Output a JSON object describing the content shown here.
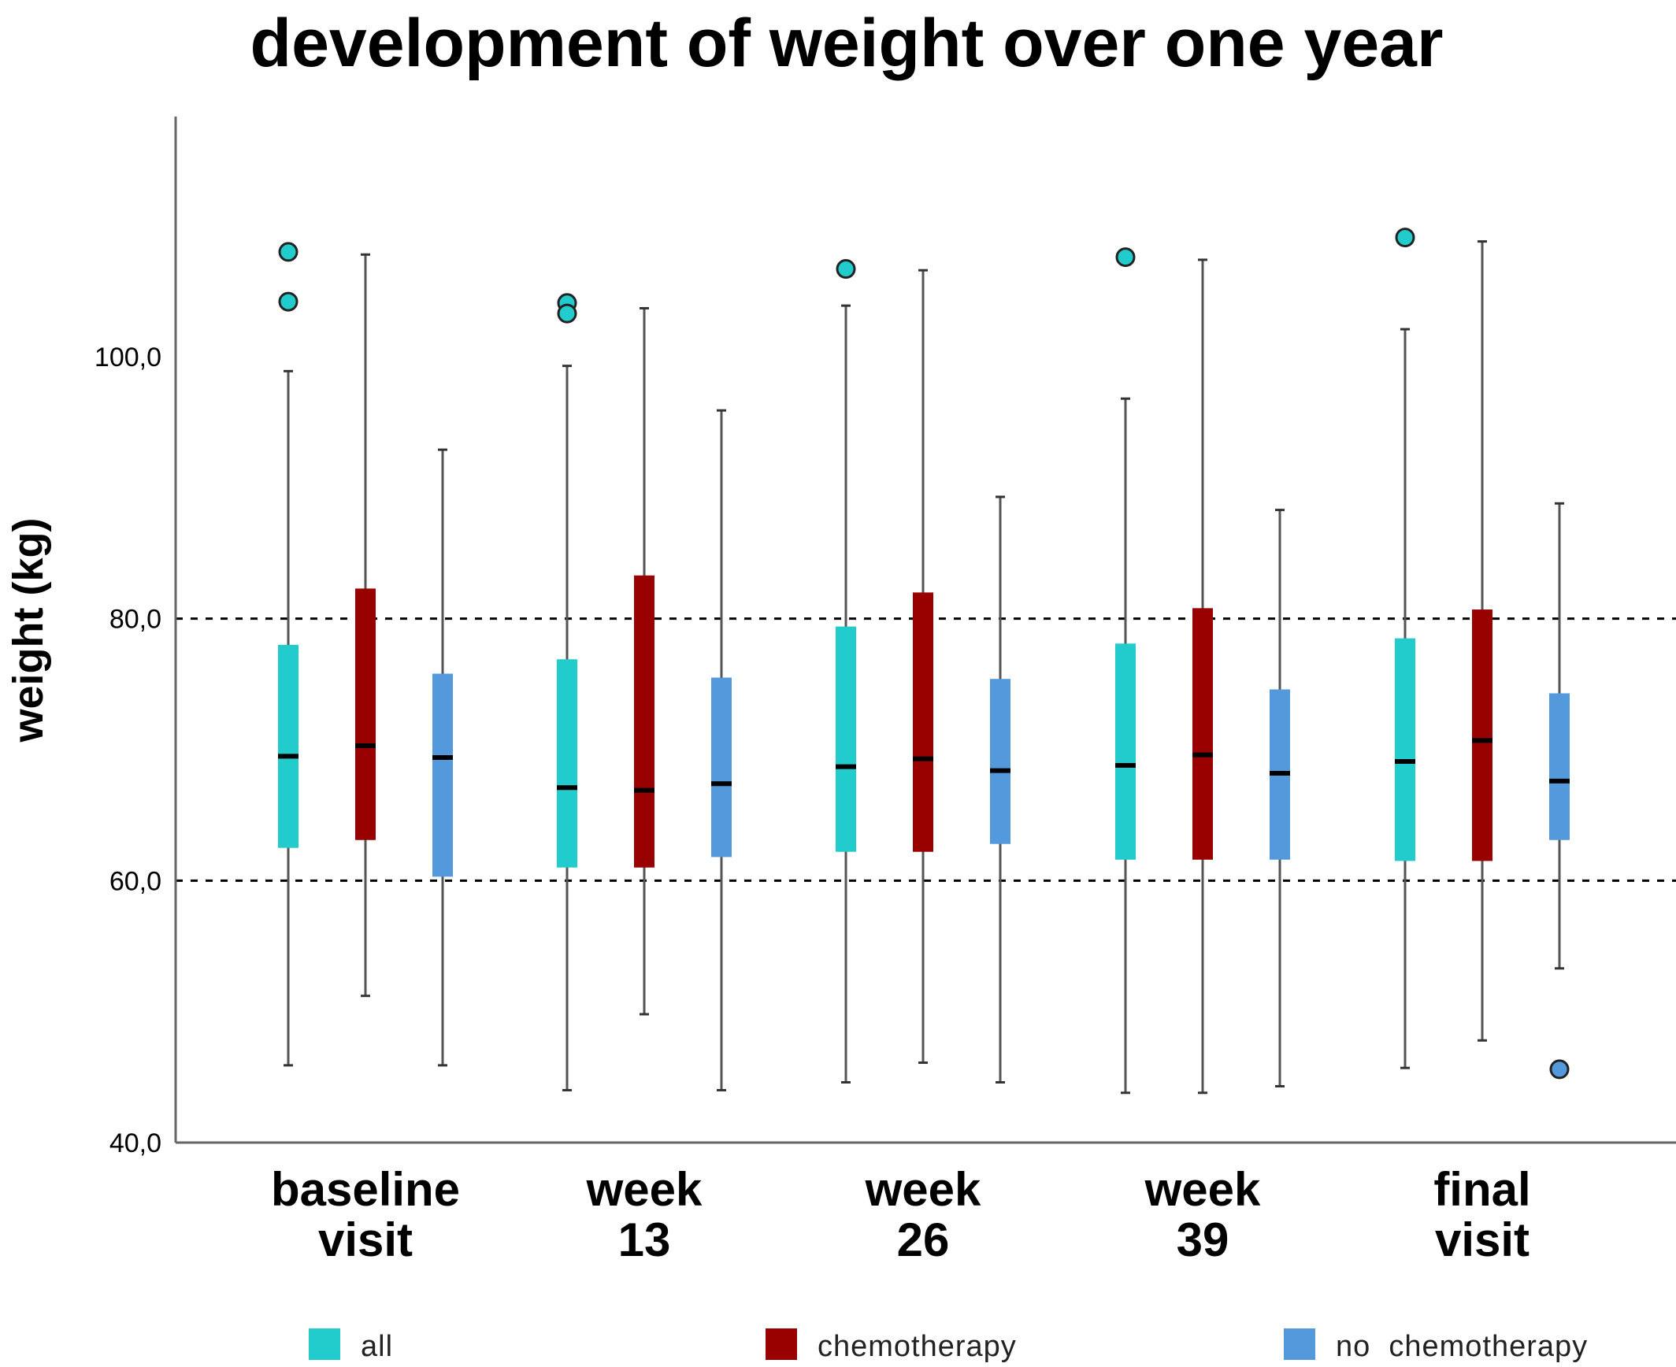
{
  "chart_data": {
    "type": "boxplot",
    "title": "development of weight over one year",
    "ylabel": "weight (kg)",
    "xlabel": "",
    "ylim": [
      40,
      118
    ],
    "yticks": [
      40,
      60,
      80,
      100
    ],
    "ytick_labels": [
      "40,0",
      "60,0",
      "80,0",
      "100,0"
    ],
    "reference_lines": [
      60,
      80
    ],
    "categories": [
      [
        "baseline",
        "visit"
      ],
      [
        "week",
        "13"
      ],
      [
        "week",
        "26"
      ],
      [
        "week",
        "39"
      ],
      [
        "final",
        "visit"
      ]
    ],
    "series": [
      {
        "name": "all",
        "color": "#22cccc",
        "boxes": [
          {
            "min": 45.9,
            "q1": 62.5,
            "median": 69.5,
            "q3": 78.0,
            "max": 98.9,
            "outliers": [
              108.0,
              104.2
            ]
          },
          {
            "min": 44.0,
            "q1": 61.0,
            "median": 67.1,
            "q3": 76.9,
            "max": 99.3,
            "outliers": [
              104.1,
              103.3
            ]
          },
          {
            "min": 44.6,
            "q1": 62.2,
            "median": 68.7,
            "q3": 79.4,
            "max": 103.9,
            "outliers": [
              106.7
            ]
          },
          {
            "min": 43.8,
            "q1": 61.6,
            "median": 68.8,
            "q3": 78.1,
            "max": 96.8,
            "outliers": [
              107.6
            ]
          },
          {
            "min": 45.7,
            "q1": 61.5,
            "median": 69.1,
            "q3": 78.5,
            "max": 102.1,
            "outliers": [
              109.1
            ]
          }
        ]
      },
      {
        "name": "chemotherapy",
        "color": "#990000",
        "boxes": [
          {
            "min": 51.2,
            "q1": 63.1,
            "median": 70.3,
            "q3": 82.3,
            "max": 107.8,
            "outliers": []
          },
          {
            "min": 49.8,
            "q1": 61.0,
            "median": 66.9,
            "q3": 83.3,
            "max": 103.7,
            "outliers": []
          },
          {
            "min": 46.1,
            "q1": 62.2,
            "median": 69.3,
            "q3": 82.0,
            "max": 106.6,
            "outliers": []
          },
          {
            "min": 43.8,
            "q1": 61.6,
            "median": 69.6,
            "q3": 80.8,
            "max": 107.4,
            "outliers": []
          },
          {
            "min": 47.8,
            "q1": 61.5,
            "median": 70.7,
            "q3": 80.7,
            "max": 108.8,
            "outliers": []
          }
        ]
      },
      {
        "name": "no  chemotherapy",
        "color": "#5599dd",
        "boxes": [
          {
            "min": 45.9,
            "q1": 60.3,
            "median": 69.4,
            "q3": 75.8,
            "max": 92.9,
            "outliers": []
          },
          {
            "min": 44.0,
            "q1": 61.8,
            "median": 67.4,
            "q3": 75.5,
            "max": 95.9,
            "outliers": []
          },
          {
            "min": 44.6,
            "q1": 62.8,
            "median": 68.4,
            "q3": 75.4,
            "max": 89.3,
            "outliers": []
          },
          {
            "min": 44.3,
            "q1": 61.6,
            "median": 68.2,
            "q3": 74.6,
            "max": 88.3,
            "outliers": []
          },
          {
            "min": 53.3,
            "q1": 63.1,
            "median": 67.6,
            "q3": 74.3,
            "max": 88.8,
            "outliers": [
              45.6
            ]
          }
        ]
      }
    ],
    "legend": [
      "all",
      "chemotherapy",
      "no  chemotherapy"
    ],
    "legend_position": "bottom"
  }
}
